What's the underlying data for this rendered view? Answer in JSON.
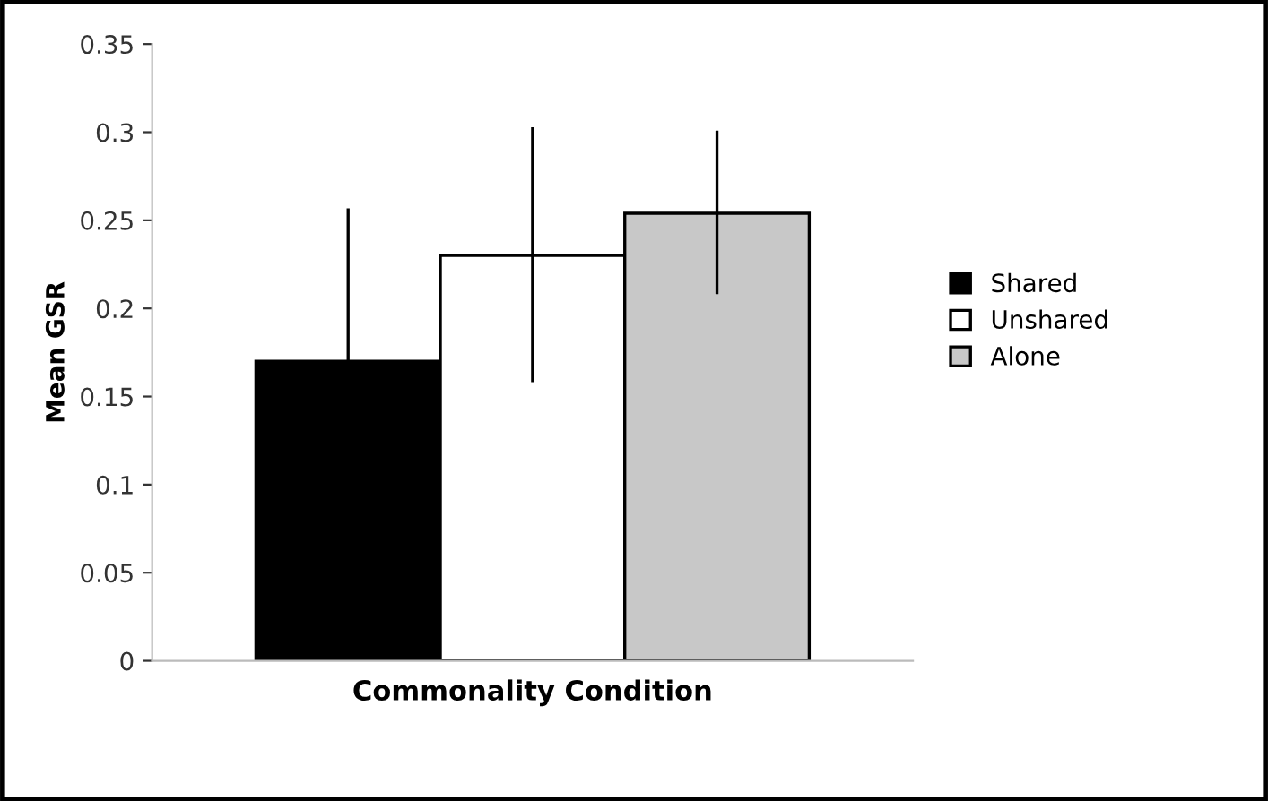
{
  "chart_data": {
    "type": "bar",
    "xlabel": "Commonality Condition",
    "ylabel": "Mean GSR",
    "categories": [
      null
    ],
    "series": [
      {
        "name": "Shared",
        "color": "#000000",
        "values": [
          0.17
        ],
        "errors": [
          [
            0.17,
            0.256
          ]
        ]
      },
      {
        "name": "Unshared",
        "color": "#ffffff",
        "values": [
          0.23
        ],
        "errors": [
          [
            0.159,
            0.302
          ]
        ]
      },
      {
        "name": "Alone",
        "color": "#c8c8c8",
        "values": [
          0.254
        ],
        "errors": [
          [
            0.209,
            0.3
          ]
        ]
      }
    ],
    "ylim": [
      0,
      0.35
    ],
    "yticks": [
      0,
      0.05,
      0.1,
      0.15,
      0.2,
      0.25,
      0.3,
      0.35
    ],
    "grid": false,
    "legend": "right"
  }
}
